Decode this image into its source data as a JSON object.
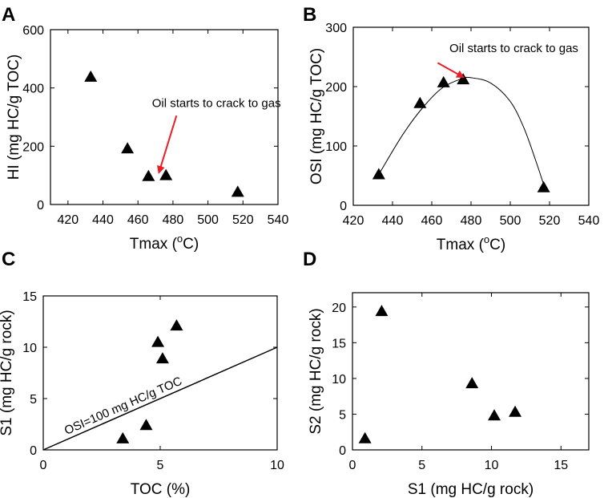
{
  "arrow_color": "#ee1c25",
  "chart_data": [
    {
      "id": "A",
      "panel_label": "A",
      "type": "scatter",
      "title": "",
      "xlabel": "Tmax (",
      "xlabel_sup": "o",
      "xlabel_end": "C)",
      "ylabel": "HI  (mg HC/g TOC)",
      "xlim": [
        410,
        540
      ],
      "ylim": [
        0,
        600
      ],
      "xticks": [
        420,
        440,
        460,
        480,
        500,
        520,
        540
      ],
      "yticks": [
        0,
        200,
        400,
        600
      ],
      "x": [
        433,
        454,
        466,
        476,
        517
      ],
      "y": [
        438,
        192,
        97,
        100,
        43
      ],
      "annotation": {
        "text": "Oil starts to crack to gas",
        "text_at": [
          468,
          335
        ],
        "arrow_from": [
          482,
          305
        ],
        "arrow_to": [
          472,
          110
        ]
      }
    },
    {
      "id": "B",
      "panel_label": "B",
      "type": "scatter",
      "title": "",
      "xlabel": "Tmax (",
      "xlabel_sup": "o",
      "xlabel_end": "C)",
      "ylabel": "OSI  (mg HC/g TOC)",
      "xlim": [
        420,
        540
      ],
      "ylim": [
        0,
        300
      ],
      "xticks": [
        420,
        440,
        460,
        480,
        500,
        520,
        540
      ],
      "yticks": [
        0,
        100,
        200,
        300
      ],
      "x": [
        433,
        454,
        466,
        476,
        517
      ],
      "y": [
        52,
        172,
        207,
        212,
        30
      ],
      "fit_curve": {
        "x": [
          433,
          445,
          455,
          465,
          475,
          480,
          490,
          500,
          507,
          513,
          517
        ],
        "y": [
          52,
          118,
          163,
          197,
          213,
          215,
          206,
          175,
          130,
          75,
          35
        ]
      },
      "annotation": {
        "text": "Oil starts to crack to gas",
        "text_at": [
          469,
          258
        ],
        "arrow_from": [
          463,
          240
        ],
        "arrow_to": [
          476,
          216
        ]
      }
    },
    {
      "id": "C",
      "panel_label": "C",
      "type": "scatter",
      "title": "",
      "xlabel": "TOC (%)",
      "ylabel": "S1 (mg HC/g rock)",
      "xlim": [
        0,
        10
      ],
      "ylim": [
        0,
        15
      ],
      "xticks": [
        0,
        5,
        10
      ],
      "yticks": [
        0,
        5,
        10,
        15
      ],
      "x": [
        3.4,
        4.4,
        4.9,
        5.1,
        5.7
      ],
      "y": [
        1.1,
        2.4,
        10.5,
        8.9,
        12.1
      ],
      "reference_line": {
        "x": [
          0,
          10
        ],
        "y": [
          0,
          10
        ],
        "label": "OSI=100 mg HC/g TOC"
      }
    },
    {
      "id": "D",
      "panel_label": "D",
      "type": "scatter",
      "title": "",
      "xlabel": "S1 (mg HC/g rock)",
      "ylabel": "S2 (mg HC/g rock)",
      "xlim": [
        0,
        17
      ],
      "ylim": [
        0,
        22
      ],
      "xticks": [
        0,
        5,
        10,
        15
      ],
      "yticks": [
        0,
        5,
        10,
        15,
        20
      ],
      "x": [
        0.9,
        2.1,
        8.6,
        10.2,
        11.7
      ],
      "y": [
        1.6,
        19.4,
        9.3,
        4.8,
        5.3
      ]
    }
  ]
}
